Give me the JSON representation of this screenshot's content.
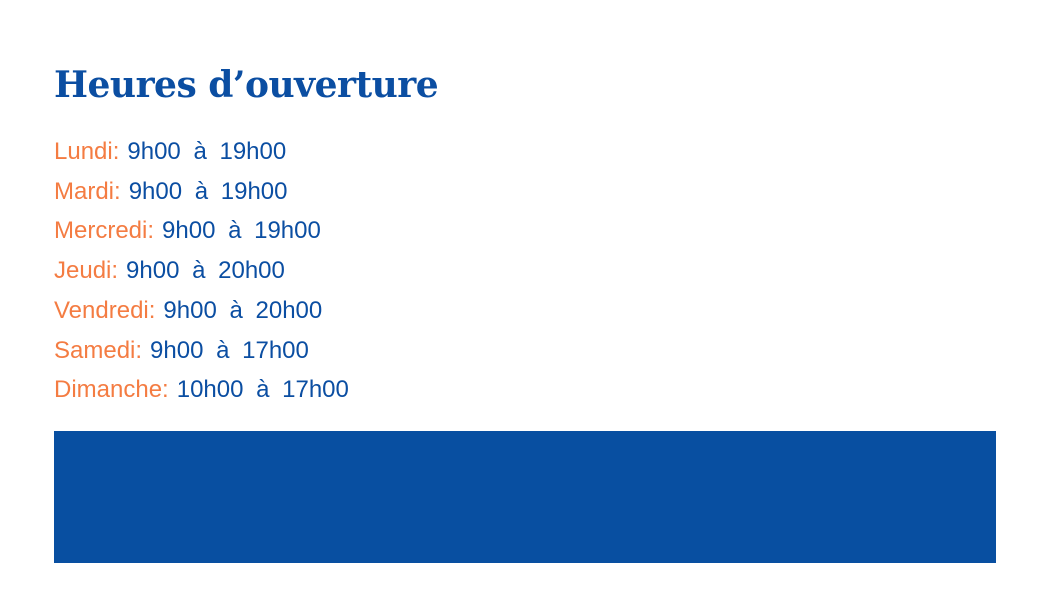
{
  "title": "Heures d’ouverture",
  "hours": [
    {
      "day": "Lundi:",
      "time": "9h00 à 19h00"
    },
    {
      "day": "Mardi:",
      "time": "9h00 à 19h00"
    },
    {
      "day": "Mercredi:",
      "time": "9h00 à 19h00"
    },
    {
      "day": "Jeudi:",
      "time": "9h00 à 20h00"
    },
    {
      "day": "Vendredi:",
      "time": "9h00 à 20h00"
    },
    {
      "day": "Samedi:",
      "time": "9h00 à 17h00"
    },
    {
      "day": "Dimanche:",
      "time": "10h00 à 17h00"
    }
  ],
  "colors": {
    "primary": "#0b4ea2",
    "accent": "#f47c42",
    "banner": "#084fa1"
  }
}
